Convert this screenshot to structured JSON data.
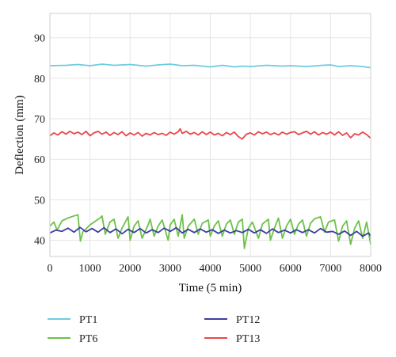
{
  "chart_data": {
    "type": "line",
    "xlabel": "Time (5 min)",
    "ylabel": "Deflection (mm)",
    "xlim": [
      0,
      8000
    ],
    "ylim": [
      36,
      96
    ],
    "xticks": [
      0,
      1000,
      2000,
      3000,
      4000,
      5000,
      6000,
      7000,
      8000
    ],
    "yticks": [
      40,
      50,
      60,
      70,
      80,
      90
    ],
    "grid": true,
    "legend_position": "bottom",
    "series": [
      {
        "name": "PT1",
        "color": "#6ecbe0",
        "x": [
          0,
          400,
          700,
          1000,
          1300,
          1600,
          2000,
          2400,
          2700,
          3000,
          3300,
          3600,
          4000,
          4300,
          4600,
          4800,
          5000,
          5400,
          5800,
          6000,
          6400,
          6800,
          7000,
          7200,
          7500,
          7800,
          8000
        ],
        "y": [
          83.1,
          83.2,
          83.4,
          83.1,
          83.5,
          83.2,
          83.4,
          83.0,
          83.3,
          83.5,
          83.1,
          83.2,
          82.8,
          83.2,
          82.8,
          83.0,
          82.9,
          83.2,
          83.0,
          83.1,
          82.9,
          83.2,
          83.3,
          82.9,
          83.1,
          82.9,
          82.6
        ]
      },
      {
        "name": "PT6",
        "color": "#6cc24a",
        "x": [
          0,
          100,
          180,
          300,
          450,
          600,
          700,
          760,
          820,
          1000,
          1250,
          1300,
          1380,
          1500,
          1600,
          1700,
          1800,
          1950,
          2000,
          2100,
          2200,
          2300,
          2450,
          2500,
          2600,
          2700,
          2800,
          2950,
          3000,
          3100,
          3200,
          3300,
          3350,
          3450,
          3600,
          3700,
          3800,
          3950,
          4000,
          4100,
          4200,
          4300,
          4400,
          4500,
          4600,
          4700,
          4800,
          4850,
          4950,
          5050,
          5200,
          5300,
          5450,
          5500,
          5600,
          5700,
          5800,
          5900,
          6000,
          6100,
          6200,
          6300,
          6400,
          6500,
          6600,
          6750,
          6850,
          6950,
          7100,
          7200,
          7300,
          7400,
          7500,
          7600,
          7700,
          7800,
          7900,
          8000
        ],
        "y": [
          43.5,
          44.5,
          42.5,
          44.8,
          45.5,
          46.0,
          46.3,
          39.8,
          42.0,
          43.8,
          45.5,
          46.0,
          41.5,
          44.5,
          45.2,
          40.5,
          43.0,
          45.8,
          40.0,
          43.5,
          44.8,
          40.5,
          43.8,
          45.2,
          41.0,
          43.5,
          45.0,
          40.0,
          43.8,
          45.2,
          41.0,
          46.3,
          40.5,
          43.5,
          45.2,
          41.5,
          44.2,
          45.0,
          41.0,
          43.5,
          44.8,
          41.0,
          44.0,
          45.0,
          41.5,
          44.5,
          45.2,
          38.0,
          43.0,
          44.5,
          40.5,
          44.0,
          45.2,
          40.0,
          43.0,
          45.5,
          40.5,
          43.5,
          45.2,
          41.5,
          44.0,
          45.0,
          41.0,
          44.2,
          45.3,
          45.8,
          42.0,
          44.5,
          45.0,
          39.8,
          43.5,
          44.8,
          39.0,
          43.0,
          44.8,
          40.5,
          44.5,
          39.0
        ]
      },
      {
        "name": "PT12",
        "color": "#3d3f9e",
        "x": [
          0,
          150,
          300,
          450,
          600,
          750,
          900,
          1050,
          1200,
          1350,
          1500,
          1650,
          1800,
          1950,
          2100,
          2250,
          2400,
          2550,
          2700,
          2850,
          3000,
          3150,
          3300,
          3450,
          3600,
          3750,
          3900,
          4050,
          4200,
          4350,
          4500,
          4650,
          4800,
          4950,
          5100,
          5250,
          5400,
          5550,
          5700,
          5850,
          6000,
          6150,
          6300,
          6450,
          6600,
          6750,
          6900,
          7050,
          7200,
          7350,
          7500,
          7650,
          7800,
          7950,
          8000
        ],
        "y": [
          41.8,
          42.5,
          42.2,
          43.0,
          42.0,
          43.2,
          42.1,
          42.9,
          42.0,
          43.1,
          41.9,
          42.8,
          41.6,
          42.7,
          41.9,
          42.9,
          41.8,
          42.6,
          41.9,
          43.0,
          42.2,
          43.1,
          41.8,
          42.7,
          41.9,
          42.8,
          42.0,
          42.6,
          41.7,
          42.5,
          41.8,
          42.4,
          41.9,
          42.7,
          41.8,
          42.6,
          41.7,
          42.8,
          41.9,
          42.5,
          41.8,
          42.6,
          41.9,
          42.6,
          41.8,
          42.9,
          42.0,
          42.2,
          41.5,
          42.3,
          41.2,
          42.2,
          41.0,
          41.8,
          41.0
        ]
      },
      {
        "name": "PT13",
        "color": "#e8474a",
        "x": [
          0,
          100,
          200,
          300,
          400,
          500,
          600,
          700,
          800,
          900,
          1000,
          1100,
          1200,
          1300,
          1400,
          1500,
          1600,
          1700,
          1800,
          1900,
          2000,
          2100,
          2200,
          2300,
          2400,
          2500,
          2600,
          2700,
          2800,
          2900,
          3000,
          3100,
          3200,
          3250,
          3300,
          3400,
          3500,
          3600,
          3700,
          3800,
          3900,
          4000,
          4100,
          4200,
          4300,
          4400,
          4500,
          4600,
          4700,
          4800,
          4900,
          5000,
          5100,
          5200,
          5300,
          5400,
          5500,
          5600,
          5700,
          5800,
          5900,
          6000,
          6100,
          6200,
          6300,
          6400,
          6500,
          6600,
          6700,
          6800,
          6900,
          7000,
          7100,
          7200,
          7300,
          7400,
          7500,
          7600,
          7700,
          7800,
          7900,
          8000
        ],
        "y": [
          65.8,
          66.5,
          66.0,
          66.8,
          66.2,
          66.9,
          66.3,
          66.7,
          66.1,
          66.9,
          65.8,
          66.5,
          66.9,
          66.2,
          66.7,
          65.9,
          66.6,
          66.1,
          66.8,
          65.8,
          66.5,
          66.0,
          66.6,
          65.7,
          66.4,
          66.0,
          66.6,
          66.1,
          66.4,
          65.9,
          66.7,
          66.2,
          66.8,
          67.5,
          66.4,
          66.9,
          66.2,
          66.6,
          66.0,
          66.8,
          66.1,
          66.7,
          66.0,
          66.4,
          65.8,
          66.6,
          66.1,
          66.7,
          65.6,
          65.0,
          66.2,
          66.5,
          66.0,
          66.8,
          66.3,
          66.7,
          66.1,
          66.5,
          66.0,
          66.7,
          66.2,
          66.6,
          66.8,
          66.1,
          66.5,
          66.9,
          66.2,
          66.8,
          66.0,
          66.6,
          66.2,
          66.7,
          66.0,
          66.8,
          65.9,
          66.5,
          65.3,
          66.3,
          66.0,
          66.7,
          66.1,
          65.2
        ]
      }
    ]
  }
}
